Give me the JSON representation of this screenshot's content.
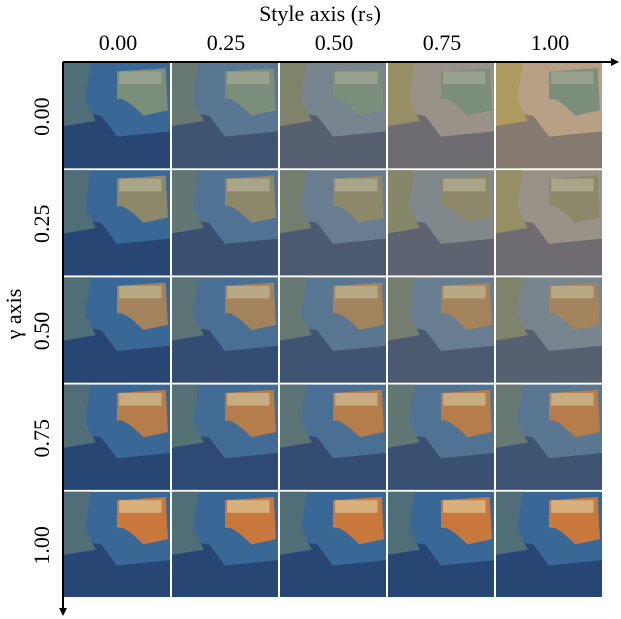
{
  "figure": {
    "x_axis_label": "Style axis (rₛ)",
    "y_axis_label": "γ axis",
    "columns": [
      "0.00",
      "0.25",
      "0.50",
      "0.75",
      "1.00"
    ],
    "rows": [
      "0.00",
      "0.25",
      "0.50",
      "0.75",
      "1.00"
    ]
  }
}
